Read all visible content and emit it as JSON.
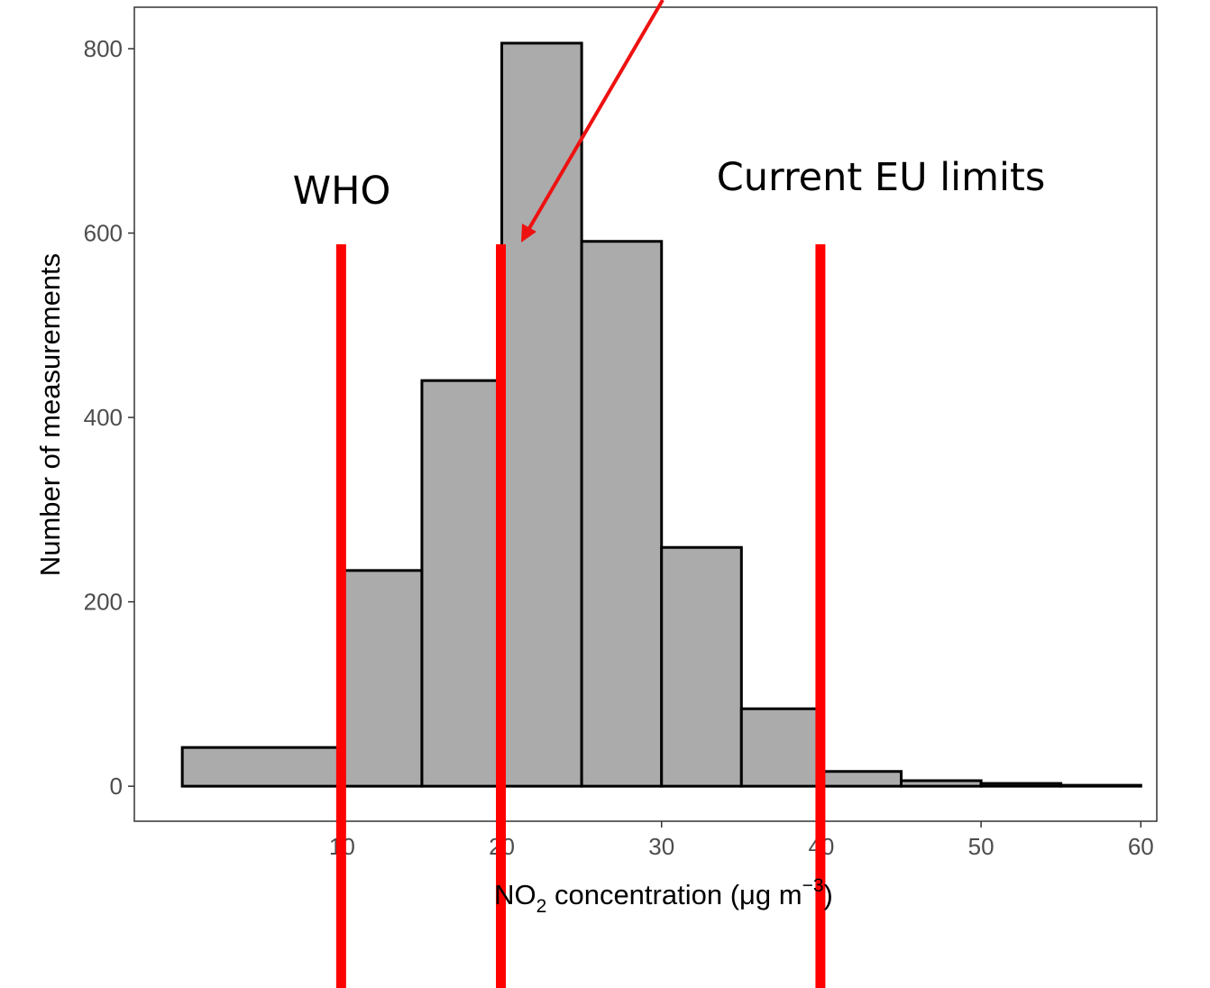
{
  "chart_data": {
    "type": "bar",
    "subtype": "histogram",
    "bins": [
      {
        "x0": 0,
        "x1": 10,
        "value": 42
      },
      {
        "x0": 10,
        "x1": 15,
        "value": 234
      },
      {
        "x0": 15,
        "x1": 20,
        "value": 440
      },
      {
        "x0": 20,
        "x1": 25,
        "value": 806
      },
      {
        "x0": 25,
        "x1": 30,
        "value": 591
      },
      {
        "x0": 30,
        "x1": 35,
        "value": 259
      },
      {
        "x0": 35,
        "x1": 40,
        "value": 84
      },
      {
        "x0": 40,
        "x1": 45,
        "value": 16
      },
      {
        "x0": 45,
        "x1": 50,
        "value": 6
      },
      {
        "x0": 50,
        "x1": 55,
        "value": 3
      },
      {
        "x0": 55,
        "x1": 60,
        "value": 1
      }
    ],
    "xlabel": {
      "pre": "NO",
      "sub": "2",
      "mid": " concentration (μg m",
      "sup": "−3",
      "post": ")"
    },
    "ylabel": "Number of measurements",
    "xlim": [
      -3,
      61
    ],
    "ylim": [
      -38,
      845
    ],
    "x_ticks": [
      10,
      20,
      30,
      40,
      50,
      60
    ],
    "x_tick_labels": [
      "10",
      "20",
      "30",
      "40",
      "50",
      "60"
    ],
    "y_ticks": [
      0,
      200,
      400,
      600,
      800
    ],
    "y_tick_labels": [
      "0",
      "200",
      "400",
      "600",
      "800"
    ],
    "grid": false,
    "reference_lines": [
      10,
      20,
      40
    ],
    "annotations": {
      "who": "WHO",
      "eu": "Current EU limits"
    },
    "colors": {
      "bar_fill": "#ababab",
      "bar_stroke": "#000000",
      "reference_line": "#ff0000",
      "arrow": "#ee1111"
    }
  }
}
